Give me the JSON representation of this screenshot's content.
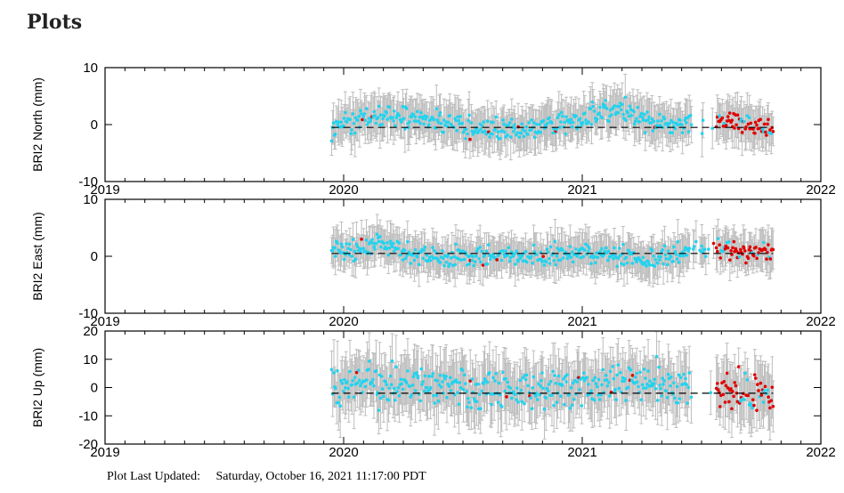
{
  "page": {
    "title": "Plots"
  },
  "footer": {
    "label": "Plot Last Updated:",
    "value": "Saturday, October 16, 2021 11:17:00 PDT"
  },
  "chart_data": [
    {
      "type": "scatter",
      "ylabel": "BRI2 North (mm)",
      "xlim": [
        2019,
        2022
      ],
      "ylim": [
        -10,
        10
      ],
      "x_ticks": [
        "2019",
        "2020",
        "2021",
        "2022"
      ],
      "y_ticks": [
        "-10",
        "0",
        "10"
      ],
      "x_start": 2019.95,
      "x_end": 2021.8,
      "red_start": 2021.55,
      "trend": -0.5,
      "wave": [
        [
          2019.95,
          -0.5
        ],
        [
          2020.2,
          1.5
        ],
        [
          2020.45,
          0.3
        ],
        [
          2020.7,
          -1.5
        ],
        [
          2020.95,
          0.5
        ],
        [
          2021.15,
          3.0
        ],
        [
          2021.35,
          0.0
        ],
        [
          2021.55,
          0.5
        ],
        [
          2021.8,
          -0.5
        ]
      ],
      "noise": 1.0,
      "err": 3.2,
      "series": [
        {
          "color": "#22d3ee"
        },
        {
          "color": "#e00000"
        }
      ]
    },
    {
      "type": "scatter",
      "ylabel": "BRI2 East (mm)",
      "xlim": [
        2019,
        2022
      ],
      "ylim": [
        -10,
        10
      ],
      "x_ticks": [
        "2019",
        "2020",
        "2021",
        "2022"
      ],
      "y_ticks": [
        "-10",
        "0",
        "10"
      ],
      "x_start": 2019.95,
      "x_end": 2021.8,
      "red_start": 2021.55,
      "trend": 0.5,
      "wave": [
        [
          2019.95,
          0.5
        ],
        [
          2020.15,
          2.0
        ],
        [
          2020.35,
          0.0
        ],
        [
          2020.7,
          0.0
        ],
        [
          2021.0,
          0.5
        ],
        [
          2021.3,
          -0.5
        ],
        [
          2021.5,
          1.5
        ],
        [
          2021.8,
          0.5
        ]
      ],
      "noise": 0.9,
      "err": 3.0,
      "series": [
        {
          "color": "#22d3ee"
        },
        {
          "color": "#e00000"
        }
      ]
    },
    {
      "type": "scatter",
      "ylabel": "BRI2 Up (mm)",
      "xlim": [
        2019,
        2022
      ],
      "ylim": [
        -20,
        20
      ],
      "x_ticks": [
        "2019",
        "2020",
        "2021",
        "2022"
      ],
      "y_ticks": [
        "-20",
        "-10",
        "0",
        "10",
        "20"
      ],
      "x_start": 2019.95,
      "x_end": 2021.8,
      "red_start": 2021.55,
      "trend": -2,
      "wave": [
        [
          2019.95,
          0
        ],
        [
          2020.3,
          1
        ],
        [
          2020.7,
          -1
        ],
        [
          2021.0,
          0
        ],
        [
          2021.35,
          3
        ],
        [
          2021.55,
          -2
        ],
        [
          2021.8,
          -2
        ]
      ],
      "noise": 3.5,
      "err": 9.0,
      "series": [
        {
          "color": "#22d3ee"
        },
        {
          "color": "#e00000"
        }
      ]
    }
  ]
}
